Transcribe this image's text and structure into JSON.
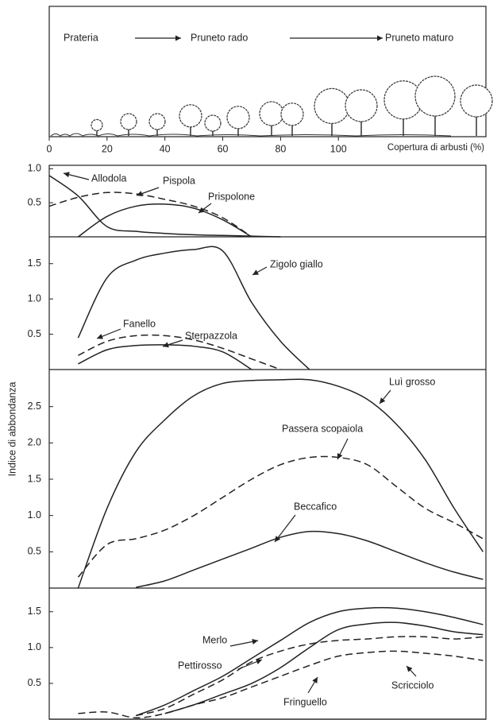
{
  "chart_data": [
    {
      "type": "illustration",
      "stages": [
        "Prateria",
        "Pruneto rado",
        "Pruneto maturo"
      ],
      "xlabel": "Copertura di arbusti (%)",
      "xlim": [
        0,
        151
      ],
      "xticks": [
        0,
        20,
        40,
        60,
        80,
        100
      ]
    },
    {
      "type": "line",
      "x": [
        0,
        10,
        20,
        30,
        40,
        50,
        60,
        70,
        80,
        90,
        100,
        110,
        120,
        130,
        140,
        150
      ],
      "xlim": [
        0,
        151
      ],
      "ylim": [
        0,
        1.05
      ],
      "yticks": [
        0.5,
        {
          "value": 1,
          "label": "1.0"
        }
      ],
      "series": [
        {
          "name": "Allodola",
          "color": "#222",
          "dashed": false,
          "values": [
            0.9,
            0.6,
            0.15,
            0.08,
            0.05,
            0.03,
            0.02,
            0.01,
            0,
            null,
            null,
            null,
            null,
            null,
            null,
            null
          ]
        },
        {
          "name": "Pispola",
          "color": "#222",
          "dashed": true,
          "values": [
            0.45,
            0.58,
            0.65,
            0.63,
            0.55,
            0.45,
            0.28,
            0,
            null,
            null,
            null,
            null,
            null,
            null,
            null,
            null
          ]
        },
        {
          "name": "Prispolone",
          "color": "#222",
          "dashed": false,
          "values": [
            null,
            0,
            0.3,
            0.45,
            0.48,
            0.42,
            0.25,
            0,
            null,
            null,
            null,
            null,
            null,
            null,
            null,
            null
          ]
        }
      ]
    },
    {
      "type": "line",
      "x": [
        0,
        10,
        20,
        30,
        40,
        50,
        60,
        70,
        80,
        90,
        100,
        110,
        120,
        130,
        140,
        150
      ],
      "xlim": [
        0,
        151
      ],
      "ylim": [
        0,
        1.88
      ],
      "yticks": [
        0.5,
        {
          "value": 1,
          "label": "1.0"
        },
        1.5
      ],
      "series": [
        {
          "name": "Zigolo giallo",
          "color": "#222",
          "dashed": false,
          "values": [
            null,
            0.45,
            1.3,
            1.55,
            1.65,
            1.7,
            1.68,
            0.95,
            0.4,
            0,
            null,
            null,
            null,
            null,
            null,
            null
          ]
        },
        {
          "name": "Fanello",
          "color": "#222",
          "dashed": true,
          "values": [
            null,
            0.2,
            0.4,
            0.48,
            0.48,
            0.42,
            0.3,
            0.15,
            0,
            null,
            null,
            null,
            null,
            null,
            null,
            null
          ]
        },
        {
          "name": "Sterpazzola",
          "color": "#222",
          "dashed": false,
          "values": [
            null,
            0.08,
            0.28,
            0.34,
            0.35,
            0.33,
            0.25,
            0,
            null,
            null,
            null,
            null,
            null,
            null,
            null,
            null
          ]
        }
      ]
    },
    {
      "type": "line",
      "ylabel": "Indice di abbondanza",
      "x": [
        0,
        10,
        20,
        30,
        40,
        50,
        60,
        70,
        80,
        90,
        100,
        110,
        120,
        130,
        140,
        150
      ],
      "xlim": [
        0,
        151
      ],
      "ylim": [
        0,
        3.0
      ],
      "yticks": [
        0.5,
        {
          "value": 1,
          "label": "1.0"
        },
        1.5,
        {
          "value": 2,
          "label": "2.0"
        },
        2.5
      ],
      "series": [
        {
          "name": "Luì grosso",
          "color": "#222",
          "dashed": false,
          "values": [
            null,
            0,
            1.1,
            1.88,
            2.32,
            2.65,
            2.82,
            2.86,
            2.87,
            2.87,
            2.78,
            2.6,
            2.26,
            1.77,
            1.1,
            0.5
          ]
        },
        {
          "name": "Passera scopaiola",
          "color": "#222",
          "dashed": true,
          "values": [
            null,
            0.15,
            0.6,
            0.68,
            0.8,
            1.0,
            1.25,
            1.5,
            1.7,
            1.8,
            1.8,
            1.7,
            1.4,
            1.1,
            0.9,
            0.68
          ]
        },
        {
          "name": "Beccafico",
          "color": "#222",
          "dashed": false,
          "values": [
            null,
            null,
            null,
            0.01,
            0.1,
            0.25,
            0.4,
            0.55,
            0.7,
            0.78,
            0.75,
            0.65,
            0.5,
            0.35,
            0.22,
            0.12
          ]
        }
      ]
    },
    {
      "type": "line",
      "x": [
        0,
        10,
        20,
        30,
        40,
        50,
        60,
        70,
        80,
        90,
        100,
        110,
        120,
        130,
        140,
        150
      ],
      "xlim": [
        0,
        151
      ],
      "ylim": [
        0,
        1.83
      ],
      "yticks": [
        0.5,
        {
          "value": 1,
          "label": "1.0"
        },
        1.5
      ],
      "series": [
        {
          "name": "Merlo",
          "color": "#222",
          "dashed": false,
          "values": [
            null,
            null,
            null,
            0.05,
            0.2,
            0.4,
            0.6,
            0.85,
            1.1,
            1.35,
            1.5,
            1.55,
            1.55,
            1.5,
            1.42,
            1.32
          ]
        },
        {
          "name": "Pettirosso",
          "color": "#222",
          "dashed": true,
          "values": [
            null,
            null,
            null,
            0.05,
            0.15,
            0.35,
            0.55,
            0.8,
            0.95,
            1.05,
            1.1,
            1.12,
            1.15,
            1.15,
            1.12,
            1.15
          ]
        },
        {
          "name": "Fringuello",
          "color": "#222",
          "dashed": false,
          "values": [
            null,
            null,
            null,
            null,
            0.08,
            0.2,
            0.35,
            0.5,
            0.72,
            1.0,
            1.25,
            1.33,
            1.35,
            1.3,
            1.22,
            1.18
          ]
        },
        {
          "name": "Scricciolo",
          "color": "#222",
          "dashed": true,
          "values": [
            null,
            0.08,
            0.1,
            0.02,
            0.08,
            0.2,
            0.3,
            0.45,
            0.6,
            0.75,
            0.88,
            0.93,
            0.95,
            0.92,
            0.88,
            0.82
          ]
        }
      ]
    }
  ]
}
